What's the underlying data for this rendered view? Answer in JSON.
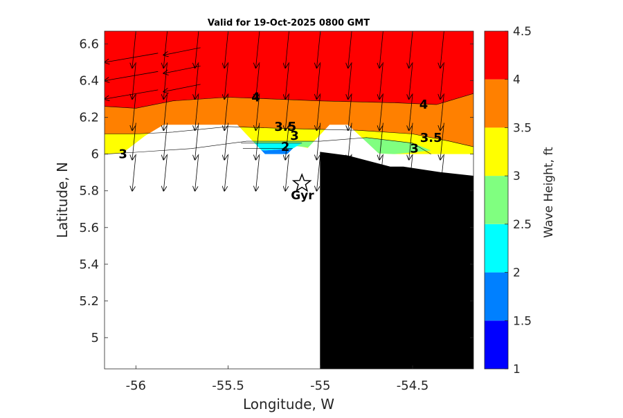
{
  "chart_data": {
    "type": "contour-map",
    "title": "Valid for 19-Oct-2025 0800 GMT",
    "xlabel": "Longitude, W",
    "ylabel": "Latitude, N",
    "xlim": [
      -56.17,
      -54.17
    ],
    "ylim": [
      4.83,
      6.67
    ],
    "x_ticks": [
      -56,
      -55.5,
      -55,
      -54.5
    ],
    "x_tick_labels": [
      "-56",
      "-55.5",
      "-55",
      "-54.5"
    ],
    "y_ticks": [
      5,
      5.2,
      5.4,
      5.6,
      5.8,
      6,
      6.2,
      6.4,
      6.6
    ],
    "y_tick_labels": [
      "5",
      "5.2",
      "5.4",
      "5.6",
      "5.8",
      "6",
      "6.2",
      "6.4",
      "6.6"
    ],
    "colorbar": {
      "label": "Wave Height, ft",
      "levels": [
        1,
        1.5,
        2,
        2.5,
        3,
        3.5,
        4,
        4.5
      ],
      "tick_labels": [
        "1",
        "1.5",
        "2",
        "2.5",
        "3",
        "3.5",
        "4",
        "4.5"
      ],
      "colors": [
        "#0000ff",
        "#0080ff",
        "#00ffff",
        "#80ff80",
        "#ffff00",
        "#ff8000",
        "#ff0000"
      ]
    },
    "contour_bands": [
      {
        "name": "band-4-4.5",
        "min": 4,
        "max": 4.5,
        "color": "#ff0000",
        "polygon": [
          [
            -56.17,
            6.67
          ],
          [
            -54.17,
            6.67
          ],
          [
            -54.17,
            6.33
          ],
          [
            -54.37,
            6.27
          ],
          [
            -54.6,
            6.28
          ],
          [
            -55,
            6.29
          ],
          [
            -55.5,
            6.31
          ],
          [
            -55.8,
            6.29
          ],
          [
            -56,
            6.25
          ],
          [
            -56.17,
            6.26
          ]
        ]
      },
      {
        "name": "band-3.5-4",
        "min": 3.5,
        "max": 4,
        "color": "#ff8000",
        "polygon": [
          [
            -56.17,
            6.26
          ],
          [
            -56,
            6.25
          ],
          [
            -55.8,
            6.29
          ],
          [
            -55.5,
            6.31
          ],
          [
            -55,
            6.29
          ],
          [
            -54.6,
            6.28
          ],
          [
            -54.37,
            6.27
          ],
          [
            -54.17,
            6.33
          ],
          [
            -54.17,
            6.04
          ],
          [
            -54.3,
            6.07
          ],
          [
            -54.5,
            6.11
          ],
          [
            -54.8,
            6.13
          ],
          [
            -55.2,
            6.14
          ],
          [
            -55.5,
            6.15
          ],
          [
            -55.8,
            6.12
          ],
          [
            -56,
            6.11
          ],
          [
            -56.17,
            6.11
          ]
        ]
      },
      {
        "name": "band-3-3.5",
        "min": 3,
        "max": 3.5,
        "color": "#ffff00",
        "polygon": [
          [
            -56.17,
            6.11
          ],
          [
            -56,
            6.11
          ],
          [
            -55.8,
            6.12
          ],
          [
            -55.5,
            6.15
          ],
          [
            -55.2,
            6.14
          ],
          [
            -54.8,
            6.13
          ],
          [
            -54.5,
            6.11
          ],
          [
            -54.3,
            6.07
          ],
          [
            -54.17,
            6.04
          ],
          [
            -54.17,
            6.0
          ],
          [
            -54.4,
            6.0
          ],
          [
            -54.6,
            6.0
          ],
          [
            -54.8,
            6.01
          ],
          [
            -55,
            6.02
          ],
          [
            -55.2,
            6.06
          ],
          [
            -55.4,
            6.07
          ],
          [
            -55.7,
            6.03
          ],
          [
            -56,
            6.01
          ],
          [
            -56.17,
            6.0
          ]
        ]
      },
      {
        "name": "band-2.5-3",
        "min": 2.5,
        "max": 3,
        "color": "#80ff80",
        "polygon": [
          [
            -55.45,
            6.07
          ],
          [
            -55.0,
            6.07
          ],
          [
            -54.75,
            6.09
          ],
          [
            -54.5,
            6.06
          ],
          [
            -54.4,
            6.02
          ],
          [
            -54.6,
            6.0
          ],
          [
            -54.8,
            6.01
          ],
          [
            -55.0,
            6.03
          ],
          [
            -55.2,
            6.05
          ],
          [
            -55.4,
            6.05
          ]
        ]
      },
      {
        "name": "band-2-2.5",
        "min": 2,
        "max": 2.5,
        "color": "#00ffff",
        "polygon": [
          [
            -55.43,
            6.06
          ],
          [
            -55.1,
            6.06
          ],
          [
            -55.15,
            6.03
          ],
          [
            -55.3,
            6.02
          ],
          [
            -55.42,
            6.03
          ]
        ]
      },
      {
        "name": "band-1.5-2",
        "min": 1.5,
        "max": 2,
        "color": "#0080ff",
        "polygon": [
          [
            -55.42,
            6.03
          ],
          [
            -55.3,
            6.02
          ],
          [
            -55.15,
            6.03
          ],
          [
            -55.18,
            6.0
          ],
          [
            -55.4,
            6.0
          ]
        ]
      }
    ],
    "no_data_mask": [
      [
        -56.17,
        6.0
      ],
      [
        -56.08,
        6.0
      ],
      [
        -55.95,
        6.1
      ],
      [
        -55.85,
        6.16
      ],
      [
        -55.45,
        6.16
      ],
      [
        -55.3,
        6.0
      ],
      [
        -55.1,
        6.0
      ],
      [
        -54.95,
        6.16
      ],
      [
        -54.85,
        6.16
      ],
      [
        -54.68,
        6.0
      ],
      [
        -54.17,
        6.0
      ],
      [
        -54.17,
        4.83
      ],
      [
        -56.17,
        4.83
      ]
    ],
    "land": [
      [
        -55.0,
        6.01
      ],
      [
        -54.85,
        5.99
      ],
      [
        -54.62,
        5.93
      ],
      [
        -54.55,
        5.93
      ],
      [
        -54.35,
        5.9
      ],
      [
        -54.17,
        5.88
      ],
      [
        -54.17,
        4.83
      ],
      [
        -55.0,
        4.83
      ]
    ],
    "contour_lines": [
      [
        [
          -56.17,
          6.26
        ],
        [
          -56,
          6.25
        ],
        [
          -55.8,
          6.29
        ],
        [
          -55.5,
          6.31
        ],
        [
          -55,
          6.29
        ],
        [
          -54.6,
          6.28
        ],
        [
          -54.37,
          6.27
        ],
        [
          -54.17,
          6.33
        ]
      ],
      [
        [
          -56.17,
          6.11
        ],
        [
          -56,
          6.11
        ],
        [
          -55.8,
          6.12
        ],
        [
          -55.5,
          6.15
        ],
        [
          -55.2,
          6.14
        ],
        [
          -54.8,
          6.13
        ],
        [
          -54.5,
          6.11
        ],
        [
          -54.3,
          6.07
        ],
        [
          -54.17,
          6.04
        ]
      ],
      [
        [
          -56.17,
          6.0
        ],
        [
          -56,
          6.01
        ],
        [
          -55.7,
          6.03
        ],
        [
          -55.4,
          6.07
        ],
        [
          -55.0,
          6.07
        ],
        [
          -54.75,
          6.09
        ],
        [
          -54.5,
          6.06
        ],
        [
          -54.4,
          6.0
        ]
      ],
      [
        [
          -55.43,
          6.06
        ],
        [
          -55.1,
          6.06
        ]
      ],
      [
        [
          -55.42,
          6.03
        ],
        [
          -55.15,
          6.03
        ]
      ]
    ],
    "contour_labels": [
      {
        "text": "4",
        "lon": -55.35,
        "lat": 6.31
      },
      {
        "text": "4",
        "lon": -54.44,
        "lat": 6.27
      },
      {
        "text": "3.5",
        "lon": -55.19,
        "lat": 6.15
      },
      {
        "text": "3.5",
        "lon": -54.4,
        "lat": 6.09
      },
      {
        "text": "3",
        "lon": -55.14,
        "lat": 6.1
      },
      {
        "text": "3",
        "lon": -56.07,
        "lat": 6.0
      },
      {
        "text": "3",
        "lon": -54.49,
        "lat": 6.03
      },
      {
        "text": "2",
        "lon": -55.19,
        "lat": 6.04
      }
    ],
    "wave_vectors": {
      "columns_lon": [
        -56.17,
        -56.0,
        -55.83,
        -55.66,
        -55.5,
        -55.33,
        -55.17,
        -55.0,
        -54.83,
        -54.66,
        -54.5,
        -54.33
      ],
      "rows_lat": [
        6.67,
        6.5,
        6.33,
        6.17,
        6.0
      ],
      "dlon": -0.02,
      "dlat": -0.2
    },
    "west_vectors_lat": [
      6.55,
      6.45,
      6.35
    ],
    "station": {
      "name": "Gyr",
      "lon": -55.1,
      "lat": 5.84
    }
  }
}
